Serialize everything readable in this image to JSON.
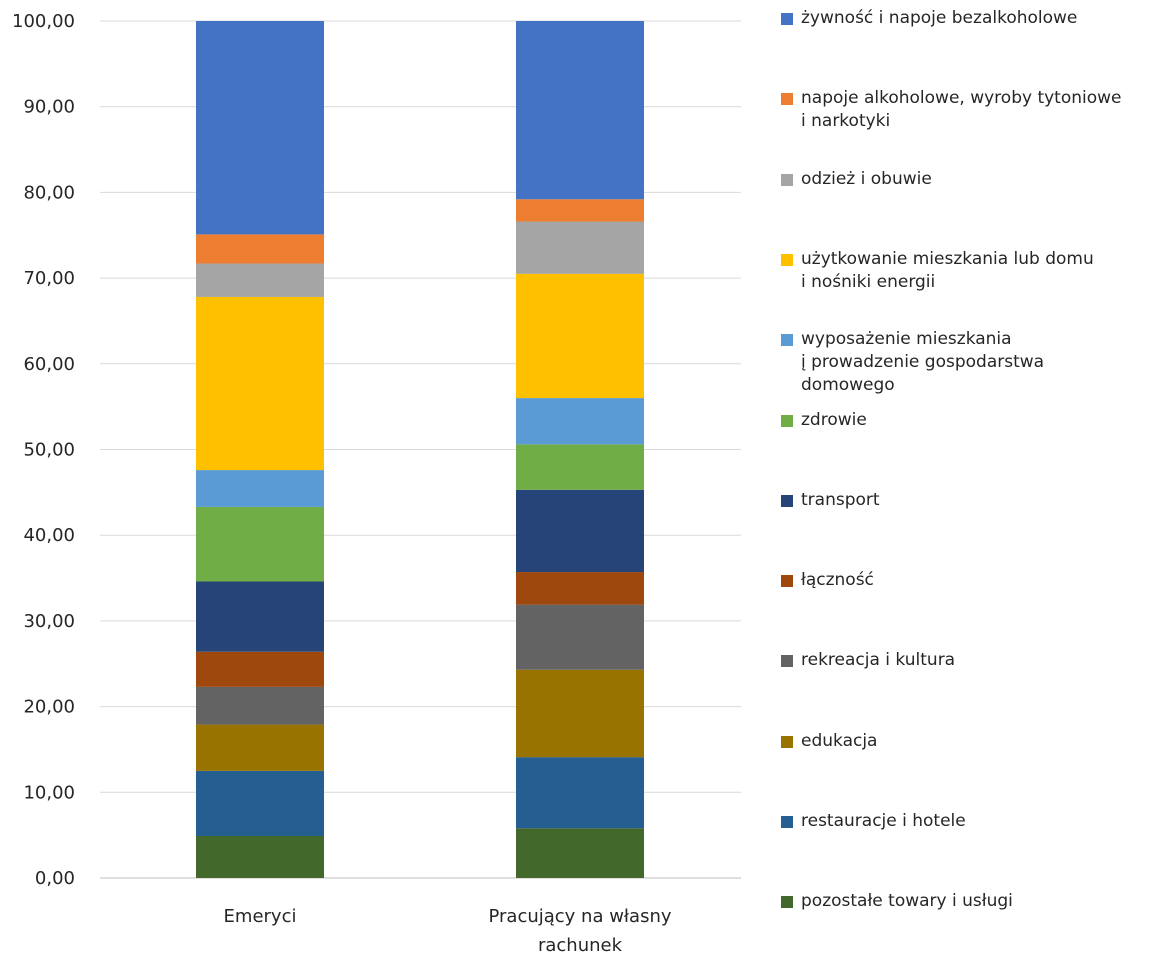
{
  "chart_data": {
    "type": "bar",
    "stacked": true,
    "title": "",
    "xlabel": "",
    "ylabel": "",
    "ylim": [
      0,
      100
    ],
    "yticks": [
      "0,00",
      "10,00",
      "20,00",
      "30,00",
      "40,00",
      "50,00",
      "60,00",
      "70,00",
      "80,00",
      "90,00",
      "100,00"
    ],
    "grid": true,
    "legend_position": "right",
    "categories": [
      "Emeryci",
      "Pracujący na własny\nrachunek"
    ],
    "series": [
      {
        "name": "pozostałe towary i usługi",
        "color": "#43682B",
        "values": [
          4.9,
          5.8
        ]
      },
      {
        "name": "restauracje i hotele",
        "color": "#255E91",
        "values": [
          7.6,
          8.3
        ]
      },
      {
        "name": "edukacja",
        "color": "#997300",
        "values": [
          5.4,
          10.2
        ]
      },
      {
        "name": "rekreacja i kultura",
        "color": "#636363",
        "values": [
          4.4,
          7.6
        ]
      },
      {
        "name": "łączność",
        "color": "#9E480E",
        "values": [
          4.1,
          3.8
        ]
      },
      {
        "name": "transport",
        "color": "#264478",
        "values": [
          8.2,
          9.6
        ]
      },
      {
        "name": "zdrowie",
        "color": "#70AD47",
        "values": [
          8.7,
          5.3
        ]
      },
      {
        "name": "wyposażenie mieszkania\nį prowadzenie gospodarstwa\ndomowego",
        "color": "#5B9BD5",
        "values": [
          4.3,
          5.4
        ]
      },
      {
        "name": "użytkowanie mieszkania lub domu\ni nośniki energii",
        "color": "#FFC000",
        "values": [
          20.2,
          14.5
        ]
      },
      {
        "name": "odzież i obuwie",
        "color": "#A5A5A5",
        "values": [
          3.9,
          6.1
        ]
      },
      {
        "name": "napoje alkoholowe, wyroby tytoniowe\ni narkotyki",
        "color": "#ED7D31",
        "values": [
          3.4,
          2.6
        ]
      },
      {
        "name": "żywność i napoje bezalkoholowe",
        "color": "#4472C4",
        "values": [
          24.9,
          20.8
        ]
      }
    ]
  }
}
